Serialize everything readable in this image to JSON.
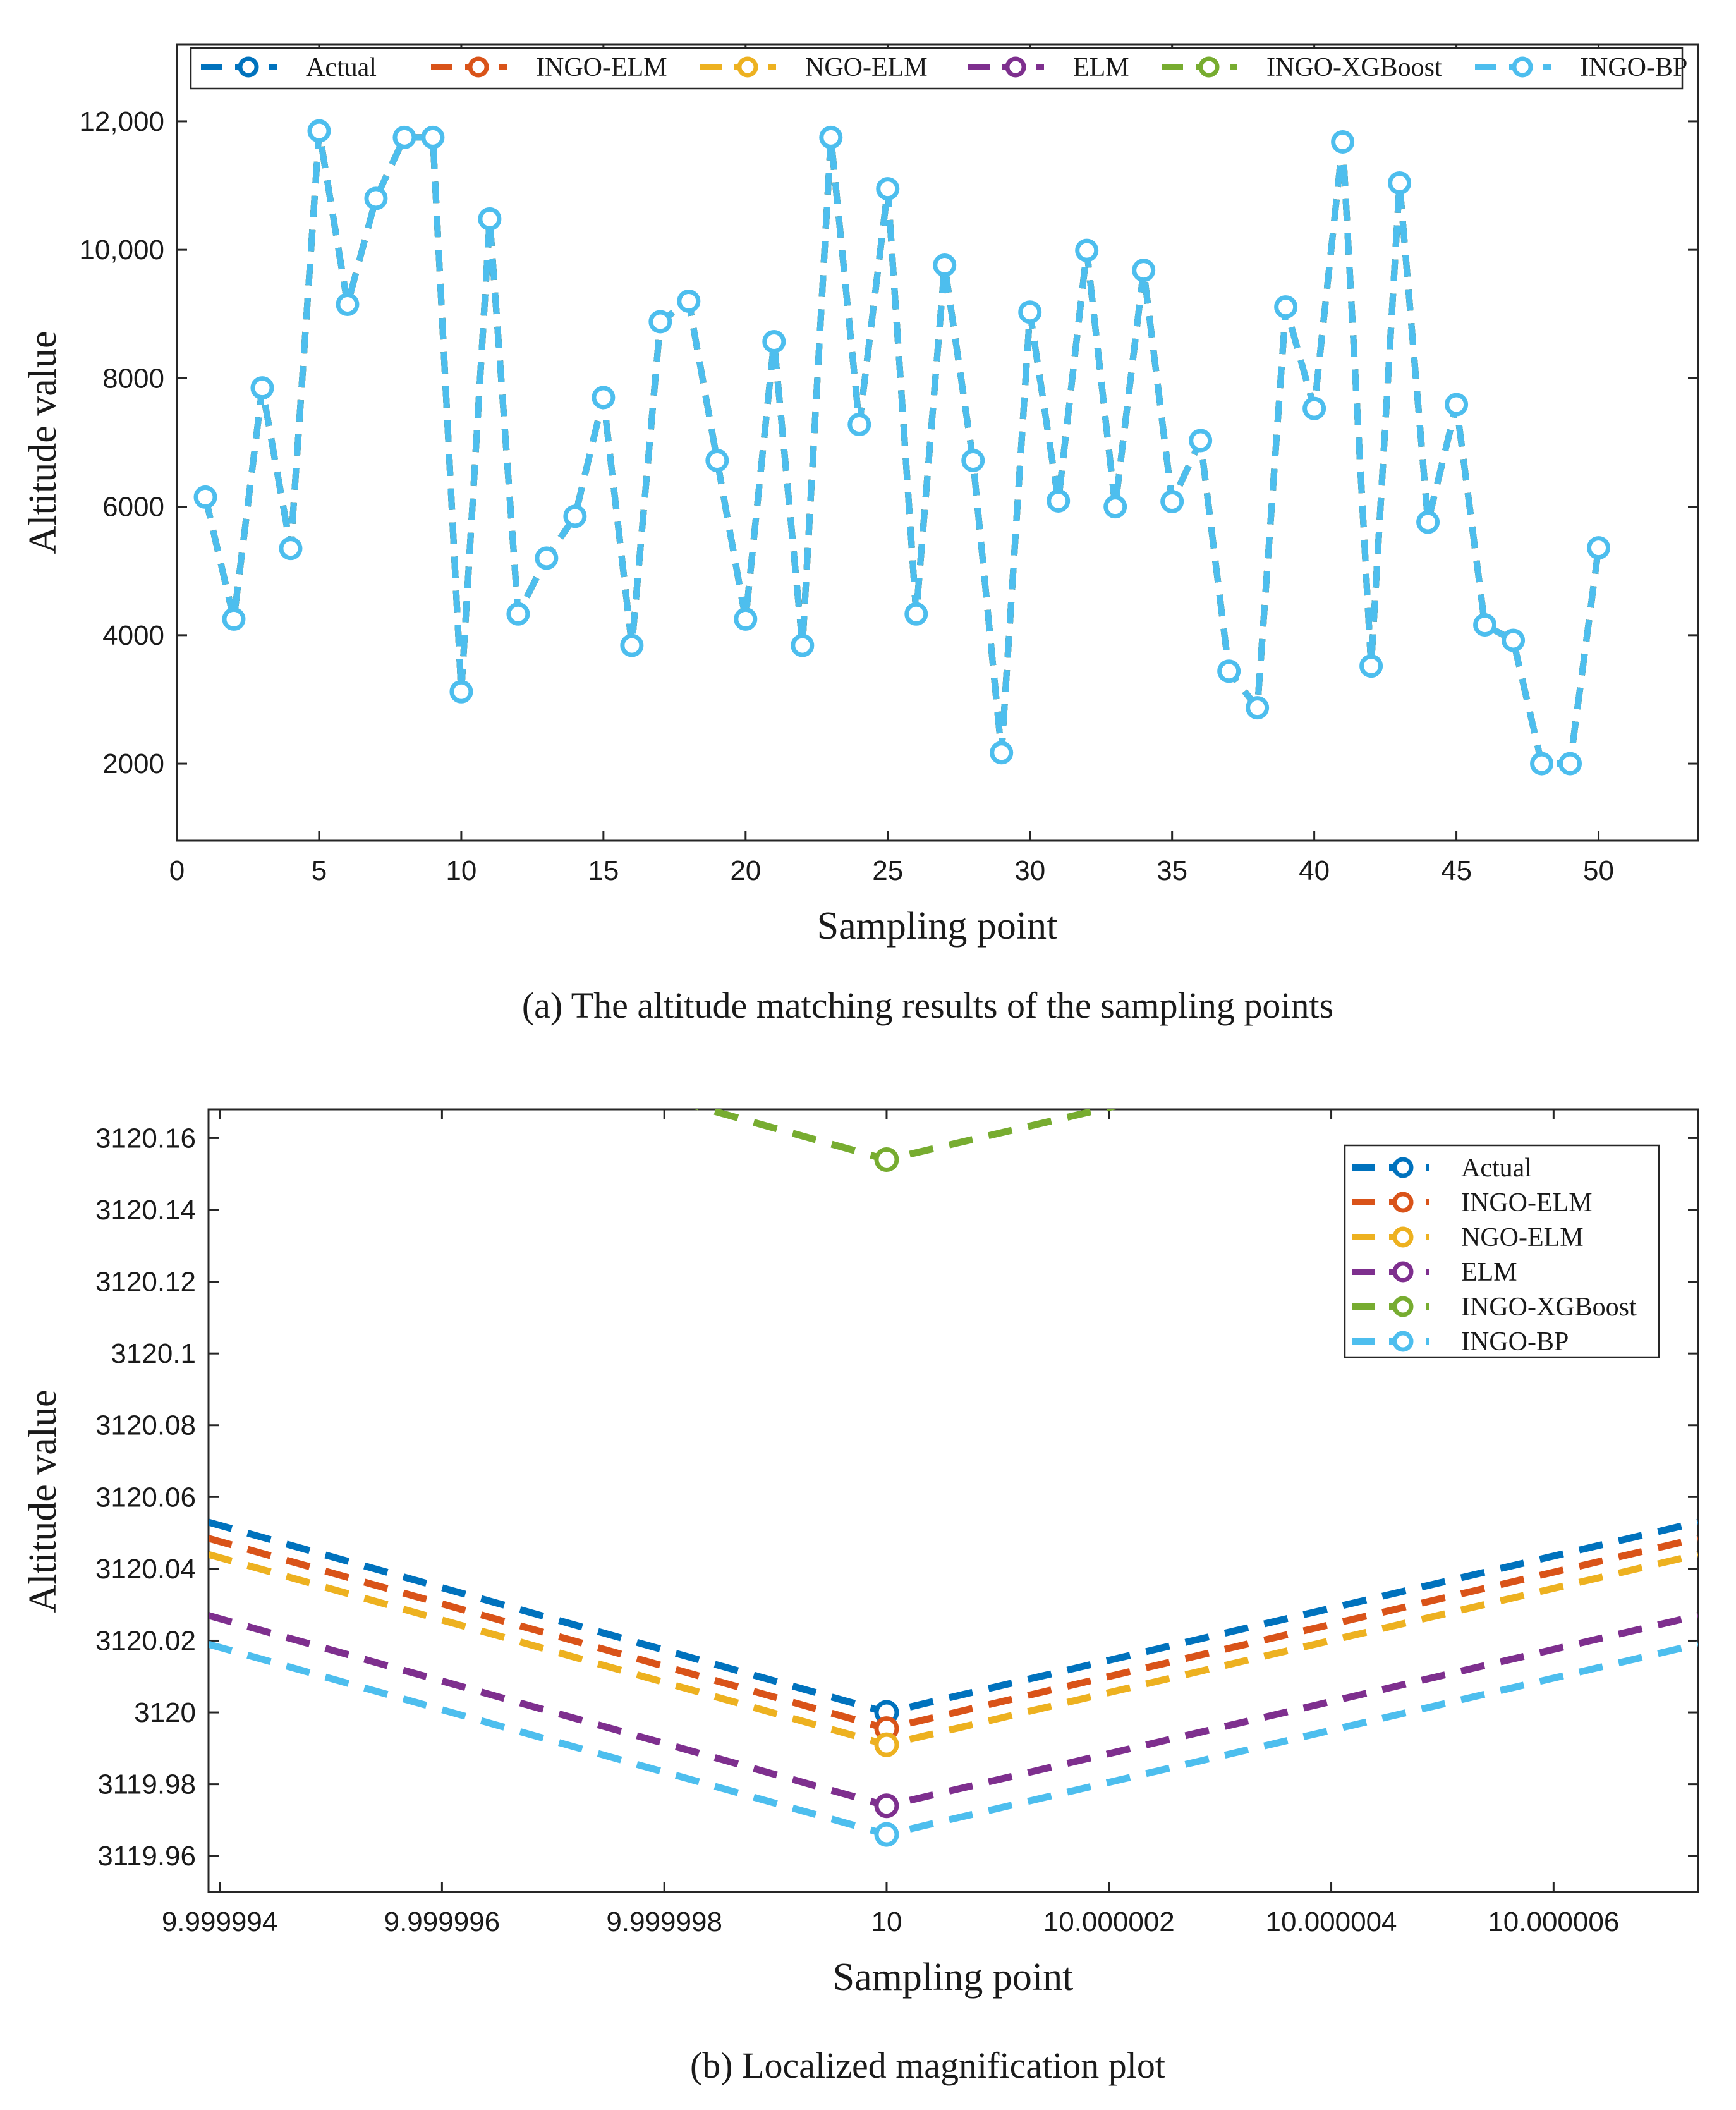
{
  "chart_data": [
    {
      "type": "line",
      "caption": "(a)  The altitude matching results of the sampling points",
      "xlabel": "Sampling point",
      "ylabel": "Altitude value",
      "xlim": [
        0,
        53.5
      ],
      "ylim": [
        800,
        13200
      ],
      "xticks": [
        0,
        5,
        10,
        15,
        20,
        25,
        30,
        35,
        40,
        45,
        50
      ],
      "xtick_labels": [
        "0",
        "5",
        "10",
        "15",
        "20",
        "25",
        "30",
        "35",
        "40",
        "45",
        "50"
      ],
      "yticks": [
        2000,
        4000,
        6000,
        8000,
        10000,
        12000
      ],
      "ytick_labels": [
        "2000",
        "4000",
        "6000",
        "8000",
        "10,000",
        "12,000"
      ],
      "legend_position": "top",
      "legend": [
        "Actual",
        "INGO-ELM",
        "NGO-ELM",
        "ELM",
        "INGO-XGBoost",
        "INGO-BP"
      ],
      "colors": [
        "#0072BD",
        "#D95319",
        "#EDB120",
        "#7E2F8E",
        "#77AC30",
        "#4DBEEE"
      ],
      "x": [
        1,
        2,
        3,
        4,
        5,
        6,
        7,
        8,
        9,
        10,
        11,
        12,
        13,
        14,
        15,
        16,
        17,
        18,
        19,
        20,
        21,
        22,
        23,
        24,
        25,
        26,
        27,
        28,
        29,
        30,
        31,
        32,
        33,
        34,
        35,
        36,
        37,
        38,
        39,
        40,
        41,
        42,
        43,
        44,
        45,
        46,
        47,
        48,
        49,
        50
      ],
      "values": [
        6150,
        4250,
        7850,
        5350,
        11850,
        9150,
        10800,
        11750,
        11750,
        3120,
        10480,
        4330,
        5200,
        5850,
        7700,
        3840,
        8880,
        9200,
        6720,
        4250,
        8570,
        3840,
        11750,
        7280,
        10950,
        4330,
        9760,
        6720,
        2170,
        9030,
        6090,
        9990,
        6000,
        9680,
        6080,
        7030,
        3440,
        2870,
        9110,
        7530,
        11680,
        3520,
        11040,
        5760,
        7590,
        4160,
        3920,
        2000,
        2000,
        5360
      ],
      "series_note": "All six series overlap at this scale; INGO-BP is drawn on top."
    },
    {
      "type": "line",
      "caption": "(b)  Localized magnification plot",
      "xlabel": "Sampling point",
      "ylabel": "Altitude value",
      "xlim": [
        9.9999939,
        10.0000073
      ],
      "ylim": [
        3119.95,
        3120.168
      ],
      "xticks": [
        9.999994,
        9.999996,
        9.999998,
        10,
        10.000002,
        10.000004,
        10.000006
      ],
      "xtick_labels": [
        "9.999994",
        "9.999996",
        "9.999998",
        "10",
        "10.000002",
        "10.000004",
        "10.000006"
      ],
      "yticks": [
        3119.96,
        3119.98,
        3120,
        3120.02,
        3120.04,
        3120.06,
        3120.08,
        3120.1,
        3120.12,
        3120.14,
        3120.16
      ],
      "ytick_labels": [
        "3119.96",
        "3119.98",
        "3120",
        "3120.02",
        "3120.04",
        "3120.06",
        "3120.08",
        "3120.1",
        "3120.12",
        "3120.14",
        "3120.16"
      ],
      "legend_position": "top-right",
      "legend": [
        "Actual",
        "INGO-ELM",
        "NGO-ELM",
        "ELM",
        "INGO-XGBoost",
        "INGO-BP"
      ],
      "colors": [
        "#0072BD",
        "#D95319",
        "#EDB120",
        "#7E2F8E",
        "#77AC30",
        "#4DBEEE"
      ],
      "marker_x": 10,
      "series": [
        {
          "name": "Actual",
          "at_left": 3120.053,
          "at_marker": 3120.0,
          "at_right": 3120.053
        },
        {
          "name": "INGO-ELM",
          "at_left": 3120.0485,
          "at_marker": 3119.9955,
          "at_right": 3120.0485
        },
        {
          "name": "NGO-ELM",
          "at_left": 3120.044,
          "at_marker": 3119.991,
          "at_right": 3120.044
        },
        {
          "name": "ELM",
          "at_left": 3120.027,
          "at_marker": 3119.974,
          "at_right": 3120.027
        },
        {
          "name": "INGO-XGBoost",
          "at_left": 3120.207,
          "at_marker": 3120.154,
          "at_right": 3120.207
        },
        {
          "name": "INGO-BP",
          "at_left": 3120.019,
          "at_marker": 3119.966,
          "at_right": 3120.019
        }
      ]
    }
  ]
}
